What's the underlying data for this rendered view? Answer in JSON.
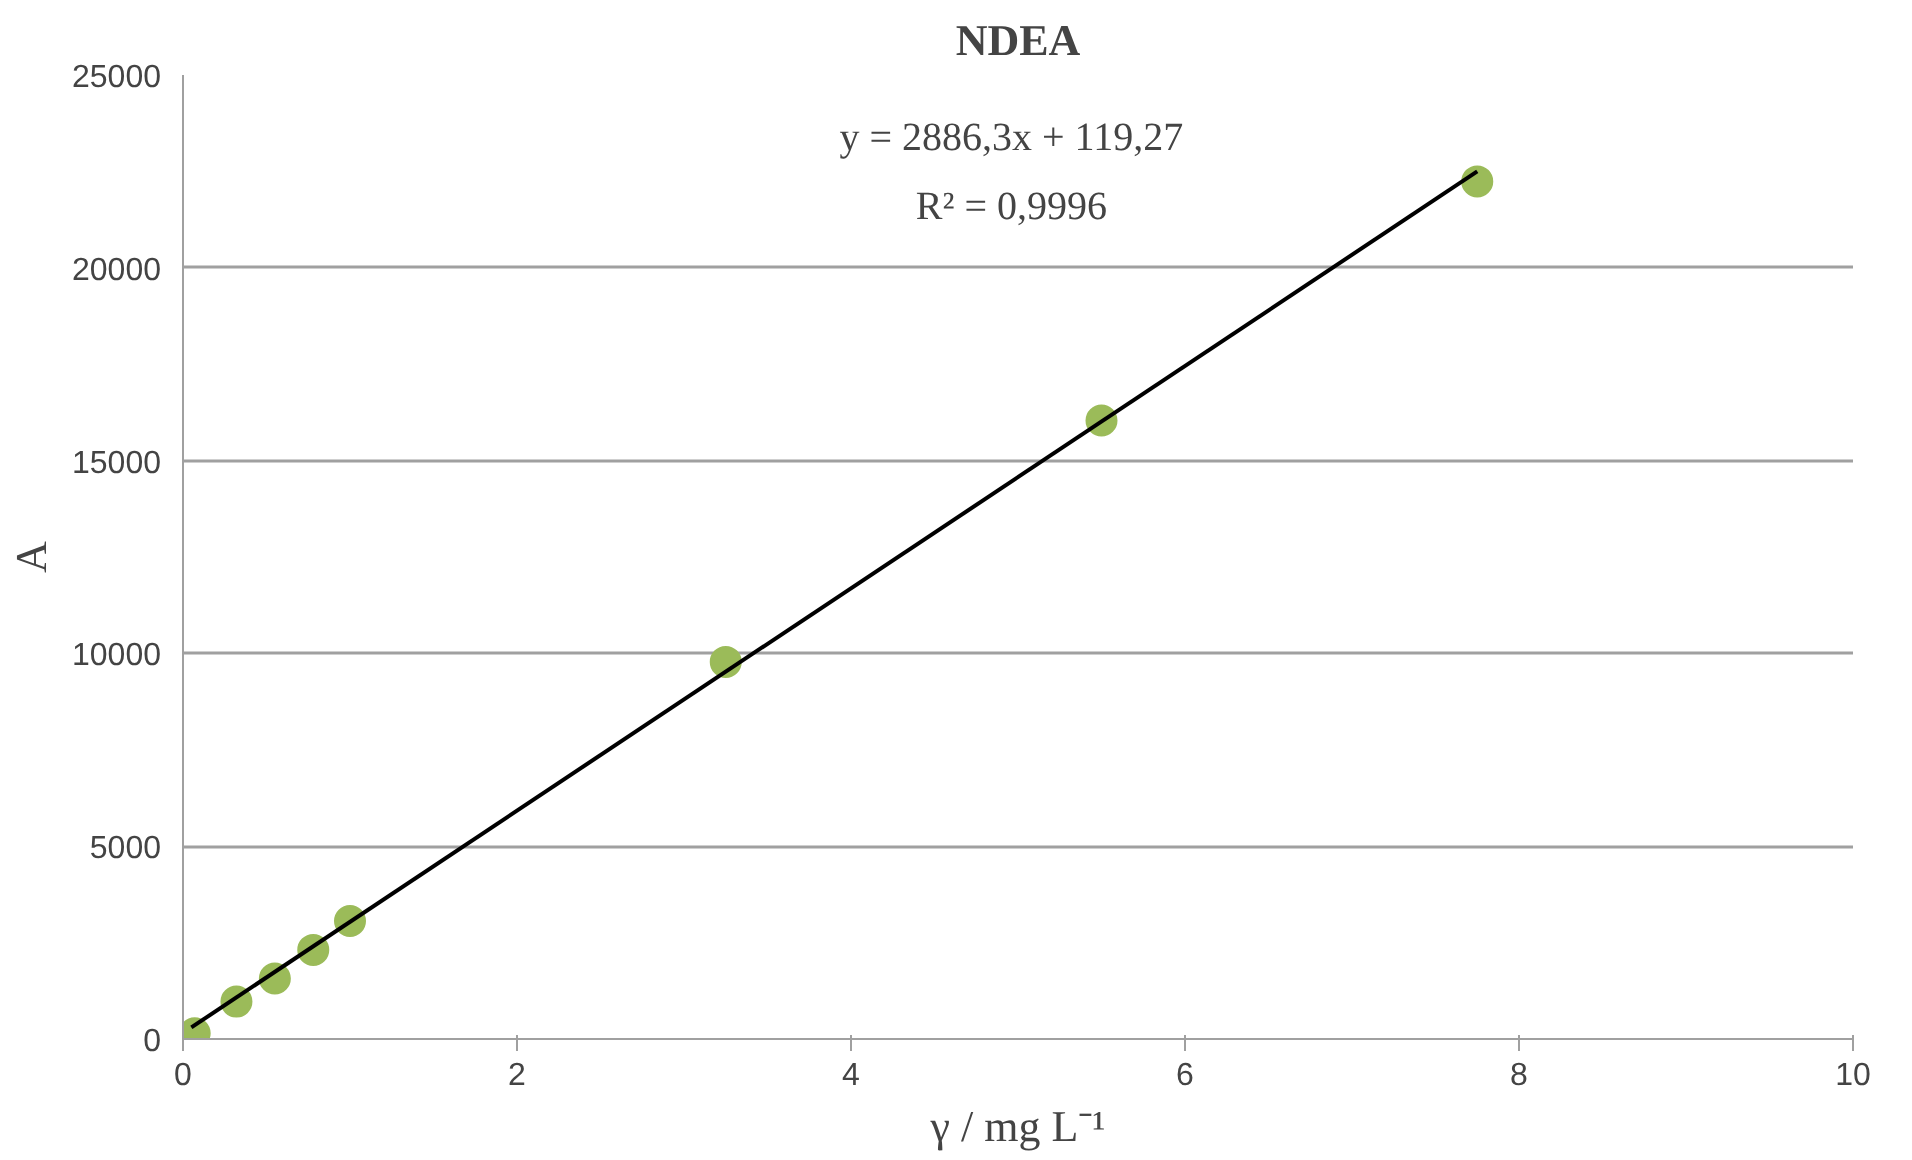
{
  "chart_data": {
    "type": "scatter",
    "title": "NDEA",
    "xlabel": "γ / mg L⁻¹",
    "ylabel": "A",
    "xlim": [
      0,
      10
    ],
    "xticks": [
      0,
      2,
      4,
      6,
      8,
      10
    ],
    "ylim": [
      0,
      25000
    ],
    "yticks": [
      0,
      5000,
      10000,
      15000,
      20000,
      25000
    ],
    "grid": "y",
    "series": [
      {
        "color": "#9bbb59",
        "marker": "circle",
        "x": [
          0.07,
          0.32,
          0.55,
          0.78,
          1.0,
          3.25,
          5.5,
          7.75
        ],
        "values": [
          150,
          970,
          1570,
          2310,
          3060,
          9780,
          16040,
          22240
        ]
      },
      {
        "type": "line",
        "color": "#000000",
        "line_style": "solid",
        "x": [
          0.05,
          7.75
        ],
        "values": [
          300,
          22500
        ]
      }
    ],
    "annotations": [
      "y = 2886,3x + 119,27",
      "R² = 0,9996"
    ]
  }
}
